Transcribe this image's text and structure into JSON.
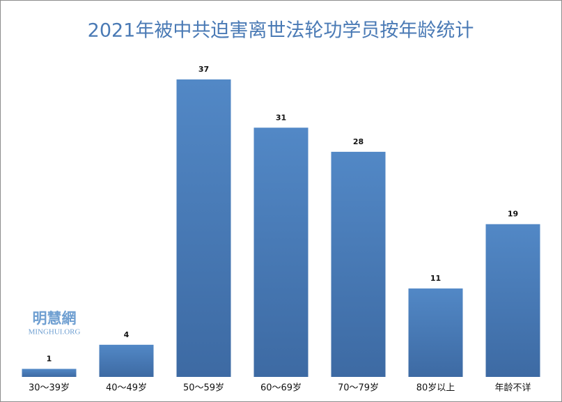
{
  "chart_data": {
    "type": "bar",
    "title": "2021年被中共迫害离世法轮功学员按年龄统计",
    "categories": [
      "30～39岁",
      "40～49岁",
      "50～59岁",
      "60～69岁",
      "70～79岁",
      "80岁以上",
      "年龄不详"
    ],
    "values": [
      1,
      4,
      37,
      31,
      28,
      11,
      19
    ],
    "color": "#4a7ebb",
    "watermark": {
      "name": "明慧網",
      "site": "MINGHUI.ORG"
    }
  }
}
